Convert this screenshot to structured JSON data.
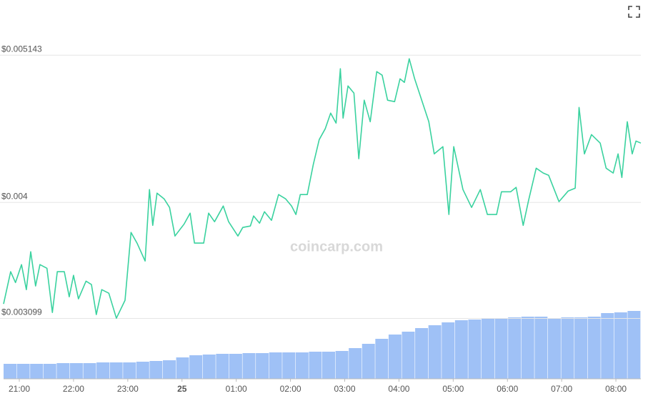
{
  "chart_data": {
    "type": "line",
    "watermark": "coincarp.com",
    "color": "#3ad29f",
    "x": [
      20.71,
      20.84,
      20.93,
      21.04,
      21.13,
      21.21,
      21.3,
      21.38,
      21.51,
      21.61,
      21.7,
      21.83,
      21.92,
      22,
      22.09,
      22.23,
      22.33,
      22.42,
      22.52,
      22.65,
      22.79,
      22.95,
      23.06,
      23.17,
      23.32,
      23.4,
      23.46,
      23.54,
      23.67,
      23.77,
      23.87,
      24.04,
      24.15,
      24.23,
      24.4,
      24.49,
      24.6,
      24.76,
      24.86,
      25.03,
      25.12,
      25.26,
      25.32,
      25.43,
      25.52,
      25.65,
      25.78,
      25.91,
      26.02,
      26.1,
      26.18,
      26.31,
      26.42,
      26.53,
      26.64,
      26.74,
      26.84,
      26.92,
      26.97,
      27.06,
      27.17,
      27.26,
      27.36,
      27.47,
      27.59,
      27.69,
      27.79,
      27.92,
      28.02,
      28.1,
      28.19,
      28.29,
      28.42,
      28.55,
      28.65,
      28.81,
      28.92,
      29.01,
      29.18,
      29.34,
      29.5,
      29.63,
      29.8,
      29.89,
      30.06,
      30.16,
      30.29,
      30.39,
      30.53,
      30.66,
      30.76,
      30.95,
      31.12,
      31.25,
      31.32,
      31.42,
      31.55,
      31.71,
      31.82,
      31.95,
      32.04,
      32.11,
      32.21,
      32.3,
      32.37,
      32.46
    ],
    "values": [
      0.003212,
      0.003462,
      0.003378,
      0.003517,
      0.003323,
      0.003617,
      0.003351,
      0.003517,
      0.003489,
      0.003145,
      0.003462,
      0.003462,
      0.003267,
      0.003434,
      0.003251,
      0.003389,
      0.003362,
      0.003129,
      0.003323,
      0.003295,
      0.003101,
      0.00324,
      0.003767,
      0.003684,
      0.003545,
      0.0041,
      0.003822,
      0.004072,
      0.004028,
      0.003961,
      0.003739,
      0.003833,
      0.003917,
      0.003684,
      0.003684,
      0.003917,
      0.00385,
      0.003972,
      0.00385,
      0.003739,
      0.003806,
      0.003817,
      0.003895,
      0.003839,
      0.003928,
      0.003861,
      0.004061,
      0.004028,
      0.003972,
      0.003906,
      0.004061,
      0.004061,
      0.004294,
      0.004488,
      0.004572,
      0.004694,
      0.004616,
      0.005038,
      0.004655,
      0.004905,
      0.004849,
      0.004339,
      0.004794,
      0.004627,
      0.005016,
      0.004988,
      0.004794,
      0.004783,
      0.00496,
      0.004932,
      0.005116,
      0.00496,
      0.004794,
      0.004627,
      0.004377,
      0.004433,
      0.003906,
      0.004433,
      0.0041,
      0.003961,
      0.0041,
      0.003906,
      0.003906,
      0.004083,
      0.004083,
      0.004117,
      0.003822,
      0.004017,
      0.004266,
      0.004228,
      0.004211,
      0.004006,
      0.004089,
      0.004111,
      0.004738,
      0.004377,
      0.004527,
      0.004461,
      0.004266,
      0.004228,
      0.004377,
      0.004194,
      0.004627,
      0.004377,
      0.004477,
      0.004461
    ],
    "volume": {
      "color": "#9fc1f6",
      "axis": "y2",
      "values": [
        21,
        21,
        21,
        21,
        22,
        22,
        22,
        23,
        23,
        23,
        24,
        25,
        26,
        30,
        33,
        34,
        35,
        35,
        36,
        36,
        37,
        37,
        37,
        38,
        38,
        39,
        43,
        49,
        56,
        62,
        66,
        71,
        75,
        79,
        82,
        83,
        84,
        85,
        86,
        87,
        87,
        84,
        86,
        86,
        87,
        92,
        93,
        95
      ]
    },
    "xlim": [
      20.71,
      32.46
    ],
    "xticks": [
      {
        "value": 21,
        "label": "21:00"
      },
      {
        "value": 22,
        "label": "22:00"
      },
      {
        "value": 23,
        "label": "23:00"
      },
      {
        "value": 24,
        "label": "25",
        "bold": true
      },
      {
        "value": 25,
        "label": "01:00"
      },
      {
        "value": 26,
        "label": "02:00"
      },
      {
        "value": 27,
        "label": "03:00"
      },
      {
        "value": 28,
        "label": "04:00"
      },
      {
        "value": 29,
        "label": "05:00"
      },
      {
        "value": 30,
        "label": "06:00"
      },
      {
        "value": 31,
        "label": "07:00"
      },
      {
        "value": 32,
        "label": "08:00"
      }
    ],
    "ylim": [
      0.00263,
      0.00545
    ],
    "yticks": [
      {
        "value": 0.003099,
        "label": "$0.003099"
      },
      {
        "value": 0.004,
        "label": "$0.004"
      },
      {
        "value": 0.005143,
        "label": "$0.005143"
      }
    ],
    "y2lim": [
      0,
      200
    ],
    "grid": true
  }
}
